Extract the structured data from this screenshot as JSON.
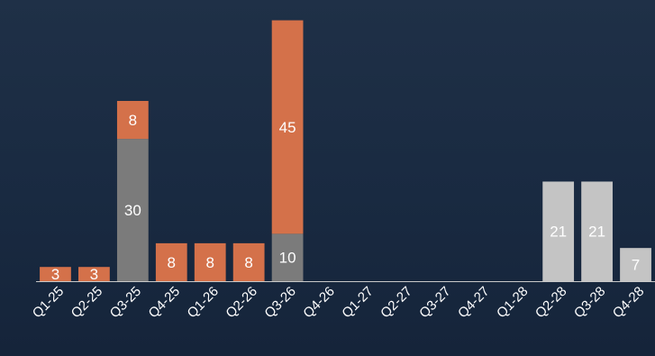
{
  "chart_data": {
    "type": "bar",
    "stacked": true,
    "title": "",
    "xlabel": "",
    "ylabel": "",
    "ylim": [
      0,
      57
    ],
    "grid": false,
    "legend": "none",
    "categories": [
      "Q1-25",
      "Q2-25",
      "Q3-25",
      "Q4-25",
      "Q1-26",
      "Q2-26",
      "Q3-26",
      "Q4-26",
      "Q1-27",
      "Q2-27",
      "Q3-27",
      "Q4-27",
      "Q1-28",
      "Q2-28",
      "Q3-28",
      "Q4-28"
    ],
    "series": [
      {
        "color": "#7b7b7b",
        "values": [
          0,
          0,
          30,
          0,
          0,
          0,
          10,
          0,
          0,
          0,
          0,
          0,
          0,
          0,
          0,
          0
        ],
        "labels": [
          "",
          "",
          "30",
          "",
          "",
          "",
          "10",
          "",
          "",
          "",
          "",
          "",
          "",
          "",
          "",
          ""
        ]
      },
      {
        "color": "#d4714a",
        "values": [
          3,
          3,
          8,
          8,
          8,
          8,
          45,
          0,
          0,
          0,
          0,
          0,
          0,
          0,
          0,
          0
        ],
        "labels": [
          "3",
          "3",
          "8",
          "8",
          "8",
          "8",
          "45",
          "",
          "",
          "",
          "",
          "",
          "",
          "",
          "",
          ""
        ]
      },
      {
        "color": "#c4c4c4",
        "values": [
          0,
          0,
          0,
          0,
          0,
          0,
          0,
          0,
          0,
          0,
          0,
          0,
          0,
          21,
          21,
          7
        ],
        "labels": [
          "",
          "",
          "",
          "",
          "",
          "",
          "",
          "",
          "",
          "",
          "",
          "",
          "",
          "21",
          "21",
          "7"
        ]
      }
    ]
  }
}
